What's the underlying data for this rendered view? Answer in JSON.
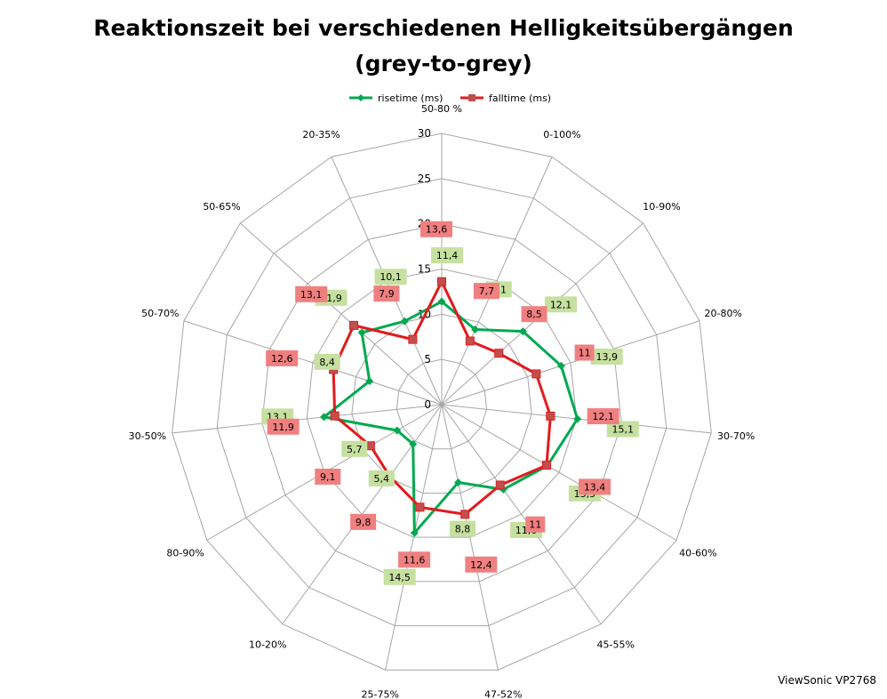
{
  "chart_data": {
    "type": "radar",
    "title_line1": "Reaktionszeit bei verschiedenen Helligkeitsübergängen",
    "title_line2": "(grey-to-grey)",
    "categories": [
      "50-80 %",
      "0-100%",
      "10-90%",
      "20-80%",
      "30-70%",
      "40-60%",
      "45-55%",
      "47-52%",
      "25-75%",
      "10-20%",
      "80-90%",
      "30-50%",
      "50-70%",
      "50-65%",
      "20-35%"
    ],
    "radial_ticks": [
      "0",
      "5",
      "10",
      "15",
      "20",
      "25",
      "30"
    ],
    "rmax": 30,
    "grid": true,
    "legend_position": "top",
    "series": [
      {
        "name": "risetime (ms)",
        "color": "#00a94f",
        "marker": "diamond",
        "label_bg": "#c6e0a0",
        "values": [
          11.4,
          9.1,
          12.1,
          13.9,
          15.1,
          13.5,
          11.6,
          8.8,
          14.5,
          5.4,
          5.7,
          13.1,
          8.4,
          11.9,
          10.1
        ],
        "labels": [
          "11,4",
          "9,1",
          "12,1",
          "13,9",
          "15,1",
          "13,5",
          "11,6",
          "8,8",
          "14,5",
          "5,4",
          "5,7",
          "13,1",
          "8,4",
          "11,9",
          "10,1"
        ]
      },
      {
        "name": "falltime (ms)",
        "color": "#e31a1c",
        "marker": "square",
        "label_bg": "#f08080",
        "values": [
          13.6,
          7.7,
          8.5,
          11,
          12.1,
          13.4,
          11,
          12.4,
          11.6,
          9.8,
          9.1,
          11.9,
          12.6,
          13.1,
          7.9
        ],
        "labels": [
          "13,6",
          "7,7",
          "8,5",
          "11",
          "12,1",
          "13,4",
          "11",
          "12,4",
          "11,6",
          "9,8",
          "9,1",
          "11,9",
          "12,6",
          "13,1",
          "7,9"
        ]
      }
    ]
  },
  "watermark": "ViewSonic VP2768"
}
